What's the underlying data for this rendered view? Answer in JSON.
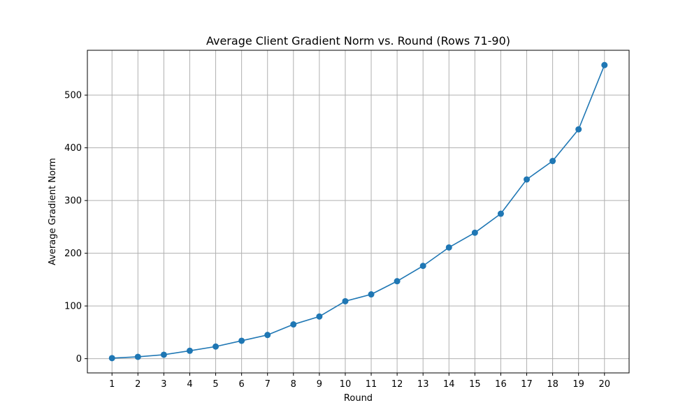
{
  "chart_data": {
    "type": "line",
    "title": "Average Client Gradient Norm vs. Round (Rows 71-90)",
    "xlabel": "Round",
    "ylabel": "Average Gradient Norm",
    "x": [
      1,
      2,
      3,
      4,
      5,
      6,
      7,
      8,
      9,
      10,
      11,
      12,
      13,
      14,
      15,
      16,
      17,
      18,
      19,
      20
    ],
    "series": [
      {
        "values": [
          1,
          3.5,
          7.5,
          15,
          23,
          34,
          45,
          65,
          80,
          109,
          122,
          147,
          176,
          211,
          239,
          275,
          340,
          375,
          435,
          557
        ],
        "color": "#1f77b4",
        "marker": "circle"
      }
    ],
    "xticks": [
      "1",
      "2",
      "3",
      "4",
      "5",
      "6",
      "7",
      "8",
      "9",
      "10",
      "11",
      "12",
      "13",
      "14",
      "15",
      "16",
      "17",
      "18",
      "19",
      "20"
    ],
    "yticks": [
      "0",
      "100",
      "200",
      "300",
      "400",
      "500"
    ],
    "xlim": [
      0.05,
      20.95
    ],
    "ylim": [
      -27,
      585
    ],
    "grid": true,
    "grid_color": "#b0b0b0",
    "legend": false
  }
}
